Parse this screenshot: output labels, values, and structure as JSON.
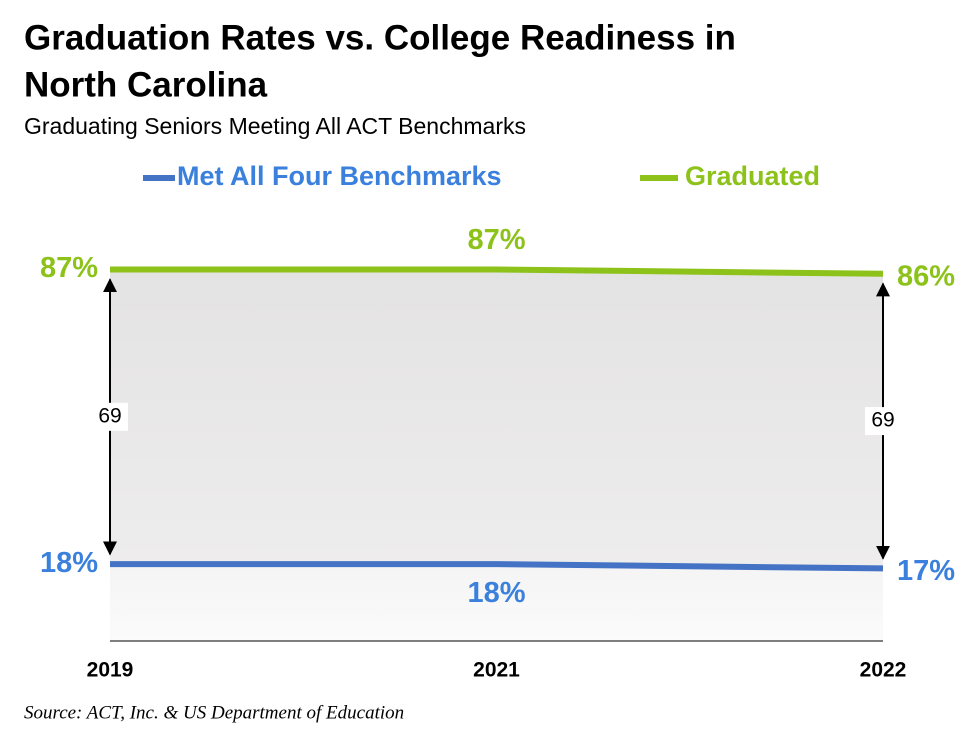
{
  "chart_data": {
    "type": "line",
    "title": "Graduation Rates vs. College Readiness in North Carolina",
    "title_lines": [
      "Graduation Rates vs. College Readiness in",
      "North Carolina"
    ],
    "subtitle": "Graduating Seniors Meeting All ACT Benchmarks",
    "source": "Source: ACT, Inc. & US Department of Education",
    "categories": [
      "2019",
      "2021",
      "2022"
    ],
    "series": [
      {
        "name": "Met All Four Benchmarks",
        "color": "#4472c4",
        "label_color": "#3a80dc",
        "values": [
          18,
          18,
          17
        ],
        "value_labels": [
          "18%",
          "18%",
          "17%"
        ]
      },
      {
        "name": "Graduated",
        "color": "#8cc21a",
        "label_color": "#8cc21a",
        "values": [
          87,
          87,
          86
        ],
        "value_labels": [
          "87%",
          "87%",
          "86%"
        ]
      }
    ],
    "differences": [
      69,
      null,
      69
    ],
    "ylim": [
      0,
      100
    ]
  }
}
